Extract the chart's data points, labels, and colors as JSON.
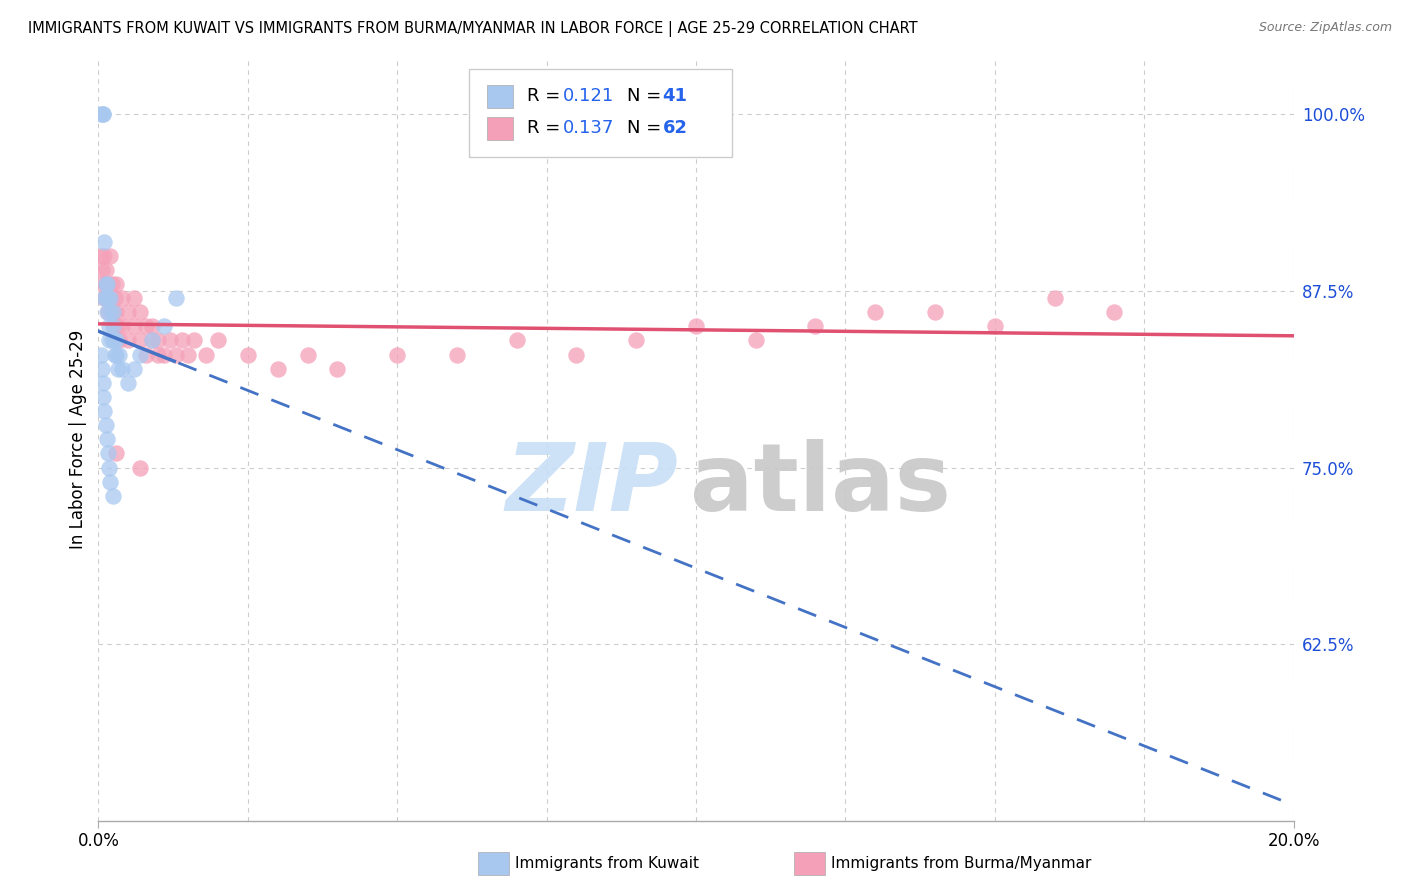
{
  "title": "IMMIGRANTS FROM KUWAIT VS IMMIGRANTS FROM BURMA/MYANMAR IN LABOR FORCE | AGE 25-29 CORRELATION CHART",
  "source": "Source: ZipAtlas.com",
  "ylabel": "In Labor Force | Age 25-29",
  "xlim": [
    0.0,
    0.2
  ],
  "ylim": [
    0.5,
    1.04
  ],
  "ytick_positions": [
    0.625,
    0.75,
    0.875,
    1.0
  ],
  "ytick_labels": [
    "62.5%",
    "75.0%",
    "87.5%",
    "100.0%"
  ],
  "kuwait_color": "#a8c8f0",
  "burma_color": "#f4a0b8",
  "kuwait_line_color": "#4472c4",
  "burma_line_color": "#e05070",
  "legend_blue_color": "#2563eb",
  "grid_color": "#cccccc",
  "background_color": "#ffffff",
  "watermark_zip_color": "#c8dff5",
  "watermark_atlas_color": "#c8c8c8",
  "kuwait_x": [
    0.0005,
    0.0007,
    0.0008,
    0.001,
    0.001,
    0.0012,
    0.0013,
    0.0014,
    0.0015,
    0.0016,
    0.0017,
    0.0018,
    0.002,
    0.002,
    0.0022,
    0.0024,
    0.0025,
    0.0026,
    0.0028,
    0.003,
    0.003,
    0.0032,
    0.0034,
    0.004,
    0.005,
    0.006,
    0.007,
    0.009,
    0.011,
    0.013,
    0.0005,
    0.0006,
    0.0007,
    0.0008,
    0.001,
    0.0012,
    0.0014,
    0.0016,
    0.0018,
    0.002,
    0.0025
  ],
  "kuwait_y": [
    1.0,
    1.0,
    1.0,
    0.87,
    0.91,
    0.88,
    0.87,
    0.86,
    0.88,
    0.87,
    0.85,
    0.84,
    0.87,
    0.86,
    0.84,
    0.85,
    0.86,
    0.84,
    0.83,
    0.84,
    0.83,
    0.82,
    0.83,
    0.82,
    0.81,
    0.82,
    0.83,
    0.84,
    0.85,
    0.87,
    0.83,
    0.82,
    0.81,
    0.8,
    0.79,
    0.78,
    0.77,
    0.76,
    0.75,
    0.74,
    0.73
  ],
  "burma_x": [
    0.0005,
    0.0006,
    0.0008,
    0.001,
    0.001,
    0.0012,
    0.0013,
    0.0014,
    0.0015,
    0.0016,
    0.0018,
    0.002,
    0.002,
    0.0022,
    0.0024,
    0.0026,
    0.0028,
    0.003,
    0.003,
    0.0032,
    0.0034,
    0.004,
    0.004,
    0.005,
    0.005,
    0.006,
    0.006,
    0.007,
    0.007,
    0.008,
    0.008,
    0.009,
    0.009,
    0.01,
    0.01,
    0.011,
    0.012,
    0.013,
    0.014,
    0.015,
    0.016,
    0.018,
    0.02,
    0.025,
    0.03,
    0.035,
    0.04,
    0.05,
    0.06,
    0.07,
    0.08,
    0.09,
    0.1,
    0.11,
    0.12,
    0.13,
    0.14,
    0.15,
    0.16,
    0.17,
    0.003,
    0.007
  ],
  "burma_y": [
    0.9,
    0.89,
    0.88,
    0.9,
    0.87,
    0.88,
    0.89,
    0.87,
    0.88,
    0.86,
    0.87,
    0.9,
    0.87,
    0.88,
    0.86,
    0.85,
    0.87,
    0.88,
    0.86,
    0.85,
    0.84,
    0.87,
    0.85,
    0.86,
    0.84,
    0.87,
    0.85,
    0.86,
    0.84,
    0.83,
    0.85,
    0.84,
    0.85,
    0.83,
    0.84,
    0.83,
    0.84,
    0.83,
    0.84,
    0.83,
    0.84,
    0.83,
    0.84,
    0.83,
    0.82,
    0.83,
    0.82,
    0.83,
    0.83,
    0.84,
    0.83,
    0.84,
    0.85,
    0.84,
    0.85,
    0.86,
    0.86,
    0.85,
    0.87,
    0.86,
    0.76,
    0.75
  ]
}
